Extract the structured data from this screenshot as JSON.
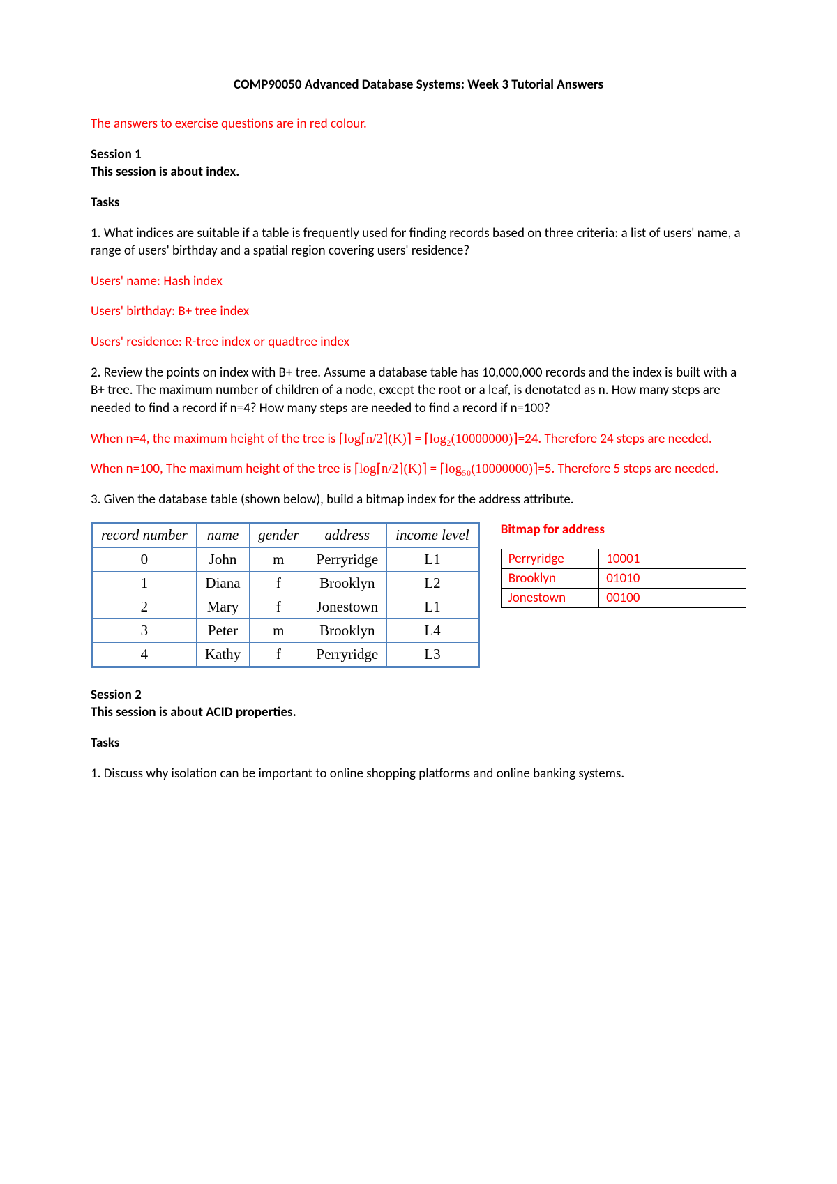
{
  "title": "COMP90050 Advanced Database Systems: Week 3 Tutorial Answers",
  "intro_red": "The answers to exercise questions are in red colour.",
  "session1_heading": "Session 1",
  "session1_sub": "This session is about index.",
  "tasks_label": "Tasks",
  "q1": "1. What indices are suitable if a table is frequently used for finding records based on three criteria: a list of users' name, a range of users' birthday and a spatial region covering users' residence?",
  "a1_line1": "Users' name: Hash index",
  "a1_line2": "Users' birthday: B+ tree index",
  "a1_line3": "Users' residence: R-tree index or quadtree index",
  "q2": "2. Review the points on index with B+ tree. Assume a database table has 10,000,000 records and the index is built with a B+ tree. The maximum number of children of a node, except the root or a leaf, is denotated as n. How many steps are needed to find a record if n=4? How many steps are needed to find a record if n=100?",
  "a2_pre1": "When n=4, the maximum height of the tree is ",
  "a2_formula1a": "⌈log⌈n/2⌉(K)⌉",
  "a2_mid1": " = ",
  "a2_formula1b": "⌈log₂(10000000)⌉",
  "a2_post1": "=24. Therefore 24 steps are needed.",
  "a2_pre2": "When n=100, The maximum height of the tree is ",
  "a2_formula2a": "⌈log⌈n/2⌉(K)⌉",
  "a2_mid2": " = ",
  "a2_formula2b": "⌈log₅₀(10000000)⌉",
  "a2_post2": "=5. Therefore 5 steps are needed.",
  "q3": "3. Given the database table (shown below), build a bitmap index for the address attribute.",
  "db_table": {
    "headers": [
      "record number",
      "name",
      "gender",
      "address",
      "income level"
    ],
    "rows": [
      [
        "0",
        "John",
        "m",
        "Perryridge",
        "L1"
      ],
      [
        "1",
        "Diana",
        "f",
        "Brooklyn",
        "L2"
      ],
      [
        "2",
        "Mary",
        "f",
        "Jonestown",
        "L1"
      ],
      [
        "3",
        "Peter",
        "m",
        "Brooklyn",
        "L4"
      ],
      [
        "4",
        "Kathy",
        "f",
        "Perryridge",
        "L3"
      ]
    ],
    "border_color": "#4f81bd"
  },
  "bitmap_title": "Bitmap for address",
  "bitmap_table": {
    "rows": [
      [
        "Perryridge",
        "10001"
      ],
      [
        "Brooklyn",
        "01010"
      ],
      [
        "Jonestown",
        "00100"
      ]
    ]
  },
  "session2_heading": "Session 2",
  "session2_sub": "This session is about ACID properties.",
  "s2_q1": "1. Discuss why isolation can be important to online shopping platforms and online banking systems."
}
